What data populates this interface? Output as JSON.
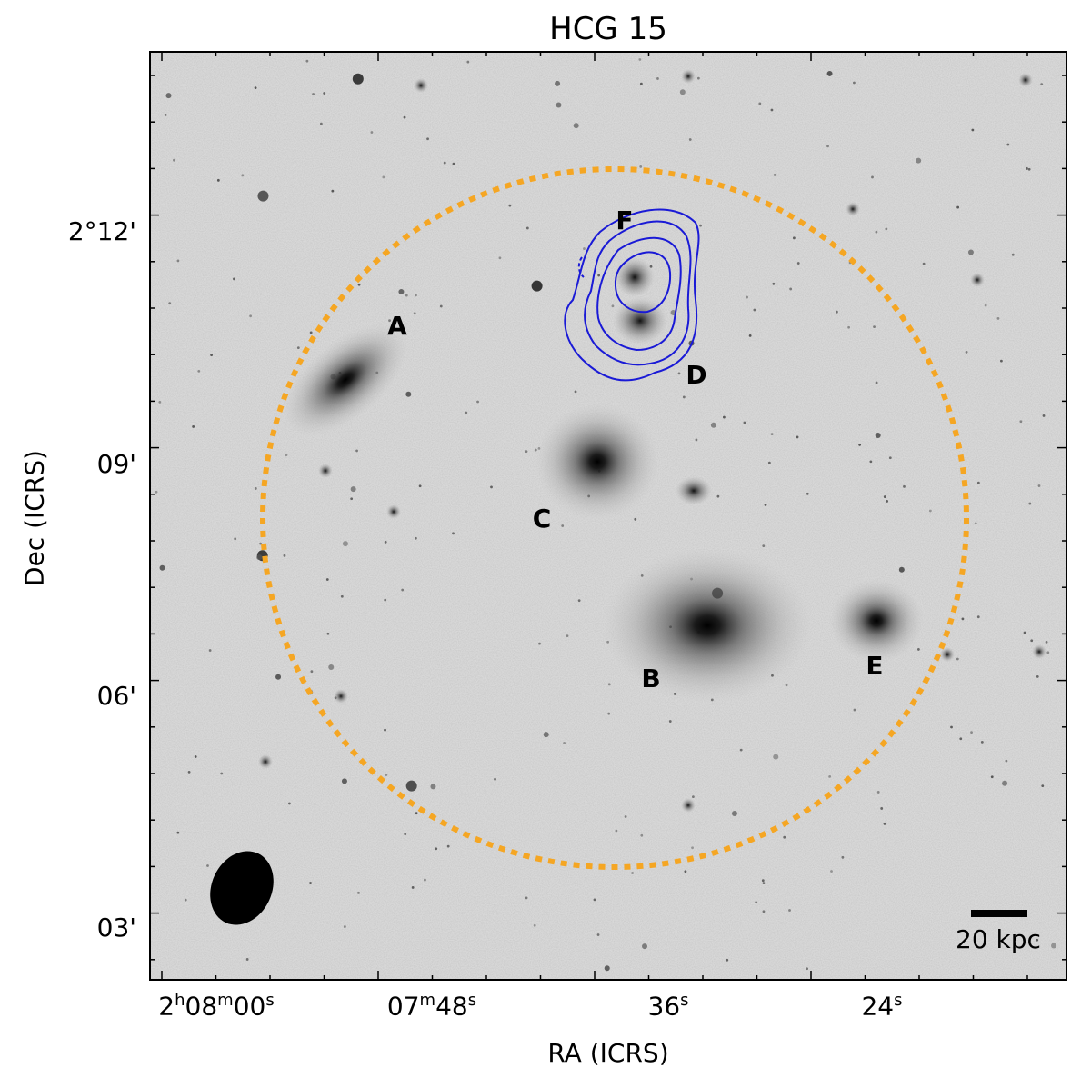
{
  "figure": {
    "title": "HCG 15",
    "xlabel": "RA (ICRS)",
    "ylabel": "Dec (ICRS)",
    "x_ticks": [
      {
        "h": "2",
        "hs": "h",
        "m": "08",
        "ms": "m",
        "s": "00",
        "ss": "s"
      },
      {
        "h": "",
        "hs": "",
        "m": "07",
        "ms": "m",
        "s": "48",
        "ss": "s"
      },
      {
        "h": "",
        "hs": "",
        "m": "",
        "ms": "",
        "s": "36",
        "ss": "s"
      },
      {
        "h": "",
        "hs": "",
        "m": "",
        "ms": "",
        "s": "24",
        "ss": "s"
      }
    ],
    "y_ticks": [
      "2°12'",
      "09'",
      "06'",
      "03'"
    ],
    "galaxy_labels": [
      "A",
      "B",
      "C",
      "D",
      "E",
      "F"
    ],
    "scale_bar_label": "20 kpc",
    "colors": {
      "contour": "#1a1ad6",
      "circle": "#f5a623",
      "background": "#d9d9d9"
    }
  }
}
